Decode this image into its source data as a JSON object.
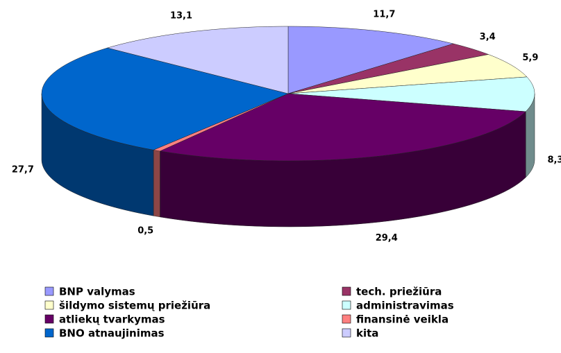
{
  "chart_data": {
    "type": "pie3d",
    "categories": [
      "BNP valymas",
      "tech. priežiūra",
      "šildymo sistemų priežiūra",
      "administravimas",
      "atliekų tvarkymas",
      "finansinė veikla",
      "BNO atnaujinimas",
      "kita"
    ],
    "values": [
      11.7,
      3.4,
      5.9,
      8.3,
      29.4,
      0.5,
      27.7,
      13.1
    ],
    "value_labels": [
      "11,7",
      "3,4",
      "5,9",
      "8,3",
      "29,4",
      "0,5",
      "27,7",
      "13,1"
    ],
    "colors": [
      "#9999ff",
      "#993366",
      "#ffffcc",
      "#ccffff",
      "#660066",
      "#ff8080",
      "#0066cc",
      "#ccccff"
    ],
    "legend": "bottom"
  }
}
